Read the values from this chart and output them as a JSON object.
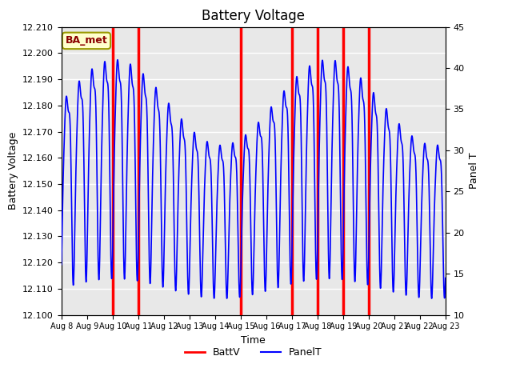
{
  "title": "Battery Voltage",
  "xlabel": "Time",
  "ylabel_left": "Battery Voltage",
  "ylabel_right": "Panel T",
  "label_box": "BA_met",
  "label_box_color": "#ffffcc",
  "label_box_text_color": "#8b0000",
  "label_box_edge_color": "#999900",
  "xlim_start": 0,
  "xlim_end": 15,
  "ylim_left": [
    12.1,
    12.21
  ],
  "ylim_right": [
    10,
    45
  ],
  "xtick_labels": [
    "Aug 8",
    "Aug 9",
    "Aug 10",
    "Aug 11",
    "Aug 12",
    "Aug 13",
    "Aug 14",
    "Aug 15",
    "Aug 16",
    "Aug 17",
    "Aug 18",
    "Aug 19",
    "Aug 20",
    "Aug 21",
    "Aug 22",
    "Aug 23"
  ],
  "plot_bg_color": "#e8e8e8",
  "grid_color": "white",
  "red_line_positions": [
    2.0,
    3.0,
    7.0,
    9.0,
    10.0,
    11.0,
    12.0
  ],
  "legend_labels": [
    "BattV",
    "PanelT"
  ],
  "legend_colors": [
    "red",
    "blue"
  ]
}
